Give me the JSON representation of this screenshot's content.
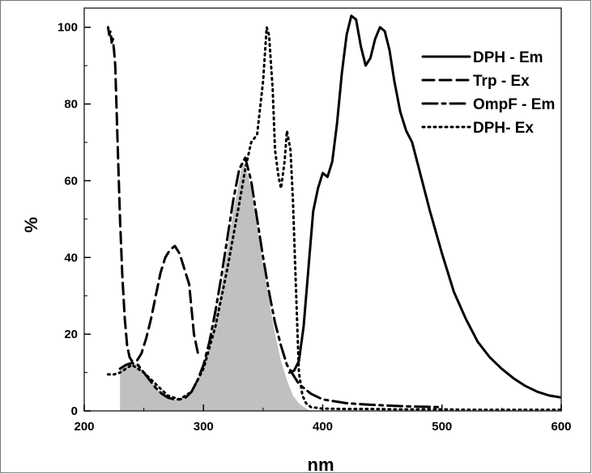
{
  "chart_data": {
    "type": "line",
    "title": "",
    "xlabel": "nm",
    "ylabel": "%",
    "xlim": [
      200,
      600
    ],
    "ylim": [
      0,
      105
    ],
    "xticks": [
      200,
      300,
      400,
      500,
      600
    ],
    "yticks": [
      0,
      20,
      40,
      60,
      80,
      100
    ],
    "grid": false,
    "legend_position": "top-right",
    "series": [
      {
        "name": "DPH - Em",
        "style": "solid",
        "x": [
          372,
          376,
          380,
          384,
          388,
          392,
          396,
          400,
          404,
          408,
          412,
          416,
          420,
          424,
          428,
          432,
          436,
          440,
          444,
          448,
          452,
          456,
          460,
          465,
          470,
          475,
          480,
          490,
          500,
          510,
          520,
          530,
          540,
          550,
          560,
          570,
          580,
          590,
          600
        ],
        "y": [
          10,
          10.5,
          13,
          22,
          37,
          52,
          58,
          62,
          61,
          65,
          75,
          88,
          98,
          103,
          102,
          95,
          90,
          92,
          97,
          100,
          99,
          94,
          86,
          78,
          73,
          70,
          64,
          52,
          41,
          31,
          24,
          18,
          14,
          11,
          8.5,
          6.5,
          5,
          4,
          3.5
        ]
      },
      {
        "name": "Trp - Ex",
        "style": "dashed",
        "x": [
          220,
          221,
          222,
          223,
          224,
          225,
          226,
          228,
          230,
          232,
          234,
          236,
          238,
          240,
          244,
          248,
          252,
          256,
          260,
          264,
          268,
          272,
          276,
          280,
          284,
          288,
          292,
          296
        ],
        "y": [
          100,
          98,
          99,
          96,
          97,
          94,
          90,
          70,
          50,
          35,
          24,
          17,
          14,
          13,
          13,
          15,
          19,
          24,
          30,
          36,
          40,
          42,
          43,
          41,
          37,
          33,
          20,
          14
        ]
      },
      {
        "name": "OmpF - Em",
        "style": "dashdot",
        "x": [
          230,
          235,
          240,
          245,
          250,
          255,
          260,
          265,
          270,
          275,
          280,
          285,
          290,
          295,
          300,
          305,
          310,
          315,
          320,
          325,
          330,
          335,
          340,
          345,
          350,
          355,
          360,
          365,
          370,
          380,
          390,
          400,
          420,
          440,
          460,
          480,
          500
        ],
        "y": [
          11,
          12,
          12.5,
          12,
          10,
          8,
          6,
          4.5,
          3.5,
          3,
          3,
          3.5,
          5,
          8,
          12,
          18,
          26,
          35,
          45,
          55,
          63,
          66,
          60,
          50,
          40,
          31,
          23,
          17,
          12,
          7,
          4.5,
          3,
          2,
          1.6,
          1.3,
          1.1,
          1
        ]
      },
      {
        "name": "DPH- Ex",
        "style": "dotted",
        "x": [
          220,
          225,
          230,
          235,
          240,
          250,
          260,
          270,
          280,
          290,
          300,
          310,
          320,
          330,
          335,
          340,
          345,
          350,
          353,
          355,
          358,
          360,
          363,
          365,
          368,
          370,
          373,
          375,
          378,
          380,
          383,
          386,
          390,
          395,
          400,
          420,
          440,
          460,
          480,
          500,
          520,
          540,
          560,
          580,
          600
        ],
        "y": [
          9.5,
          9.5,
          10,
          11,
          12,
          10,
          7,
          4,
          3,
          5,
          11,
          22,
          37,
          54,
          63,
          70,
          72,
          86,
          100,
          98,
          84,
          68,
          61,
          58,
          65,
          73,
          68,
          55,
          28,
          10,
          4,
          2,
          1,
          0.8,
          0.6,
          0.5,
          0.5,
          0.4,
          0.4,
          0.4,
          0.3,
          0.3,
          0.3,
          0.3,
          0.3
        ]
      }
    ],
    "shaded_area": {
      "fill": "#c0c0c0",
      "x": [
        230,
        235,
        240,
        245,
        250,
        255,
        260,
        265,
        270,
        275,
        280,
        285,
        290,
        295,
        300,
        305,
        310,
        315,
        320,
        325,
        330,
        333,
        336,
        340,
        345,
        350,
        355,
        360,
        365,
        370,
        375,
        380,
        385,
        390
      ],
      "y": [
        11,
        12,
        12.5,
        12,
        10,
        8,
        6,
        4.5,
        3.5,
        3,
        3,
        3.5,
        5,
        8,
        11,
        17,
        24,
        32,
        42,
        52,
        60,
        65,
        63,
        58,
        48,
        38,
        29,
        20,
        13,
        8,
        4,
        2,
        0.8,
        0
      ]
    },
    "colors": {
      "lines": "#000000",
      "fill": "#c0c0c0",
      "frame": "#333333"
    }
  }
}
